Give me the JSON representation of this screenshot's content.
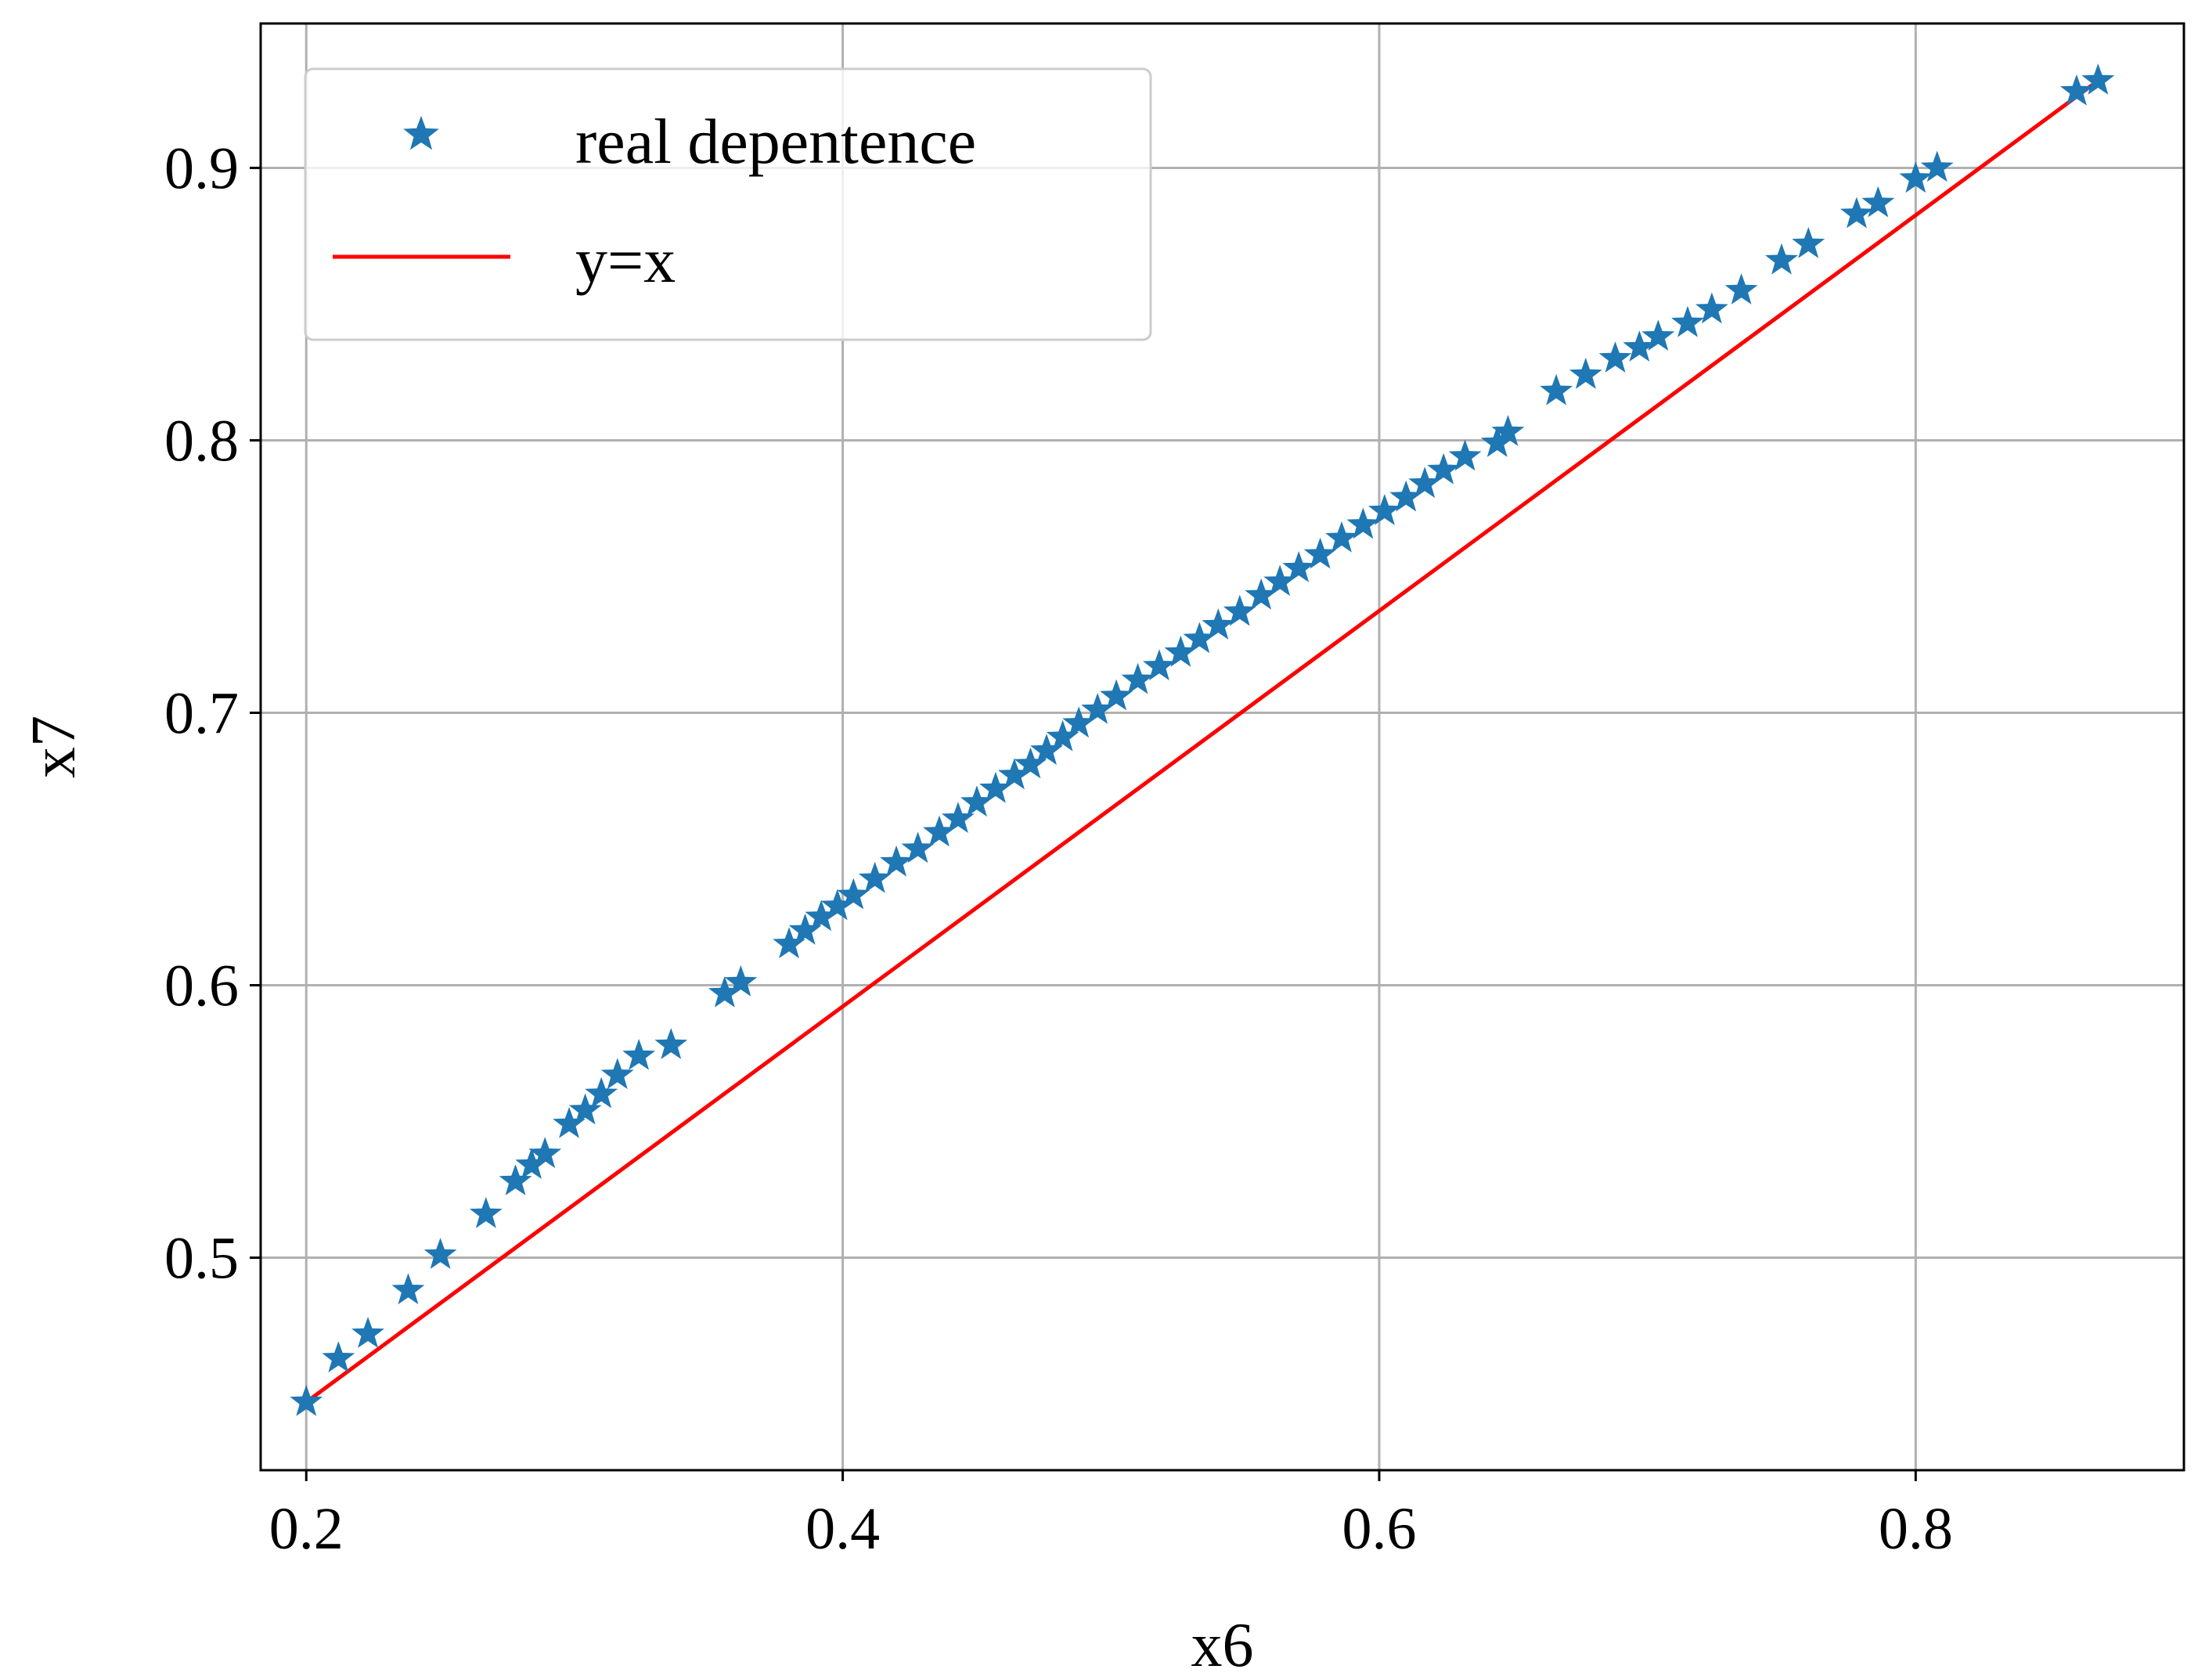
{
  "chart_data": {
    "type": "scatter",
    "xlabel": "x6",
    "ylabel": "x7",
    "xlim": [
      0.183,
      0.9
    ],
    "ylim": [
      0.422,
      0.953
    ],
    "xticks": [
      0.2,
      0.4,
      0.6,
      0.8
    ],
    "yticks": [
      0.5,
      0.6,
      0.7,
      0.8,
      0.9
    ],
    "xtick_labels": [
      "0.2",
      "0.4",
      "0.6",
      "0.8"
    ],
    "ytick_labels": [
      "0.5",
      "0.6",
      "0.7",
      "0.8",
      "0.9"
    ],
    "grid": true,
    "legend_position": "top-left",
    "series": [
      {
        "name": "real depentence",
        "kind": "scatter",
        "marker": "star",
        "color": "#1f77b4",
        "x": [
          0.2,
          0.212,
          0.223,
          0.238,
          0.25,
          0.267,
          0.278,
          0.284,
          0.289,
          0.298,
          0.304,
          0.31,
          0.316,
          0.324,
          0.336,
          0.356,
          0.362,
          0.38,
          0.386,
          0.392,
          0.398,
          0.404,
          0.412,
          0.42,
          0.428,
          0.436,
          0.443,
          0.45,
          0.457,
          0.464,
          0.47,
          0.476,
          0.482,
          0.488,
          0.495,
          0.502,
          0.51,
          0.518,
          0.526,
          0.533,
          0.54,
          0.548,
          0.556,
          0.563,
          0.57,
          0.578,
          0.586,
          0.594,
          0.602,
          0.61,
          0.617,
          0.624,
          0.632,
          0.644,
          0.648,
          0.666,
          0.677,
          0.688,
          0.697,
          0.704,
          0.715,
          0.724,
          0.735,
          0.75,
          0.76,
          0.778,
          0.786,
          0.8,
          0.808,
          0.86,
          0.868
        ],
        "y": [
          0.447,
          0.463,
          0.472,
          0.488,
          0.501,
          0.516,
          0.528,
          0.534,
          0.538,
          0.549,
          0.554,
          0.56,
          0.567,
          0.574,
          0.578,
          0.597,
          0.601,
          0.615,
          0.62,
          0.625,
          0.629,
          0.633,
          0.639,
          0.645,
          0.65,
          0.656,
          0.661,
          0.667,
          0.672,
          0.677,
          0.681,
          0.686,
          0.691,
          0.696,
          0.701,
          0.706,
          0.712,
          0.717,
          0.722,
          0.727,
          0.732,
          0.737,
          0.743,
          0.748,
          0.753,
          0.758,
          0.764,
          0.769,
          0.774,
          0.779,
          0.784,
          0.789,
          0.794,
          0.799,
          0.803,
          0.818,
          0.824,
          0.83,
          0.834,
          0.838,
          0.843,
          0.848,
          0.855,
          0.866,
          0.872,
          0.883,
          0.887,
          0.896,
          0.9,
          0.928,
          0.932
        ]
      },
      {
        "name": "y=x",
        "kind": "line",
        "color": "#ff0000",
        "x": [
          0.2,
          0.868
        ],
        "y": [
          0.447,
          0.932
        ]
      }
    ]
  }
}
